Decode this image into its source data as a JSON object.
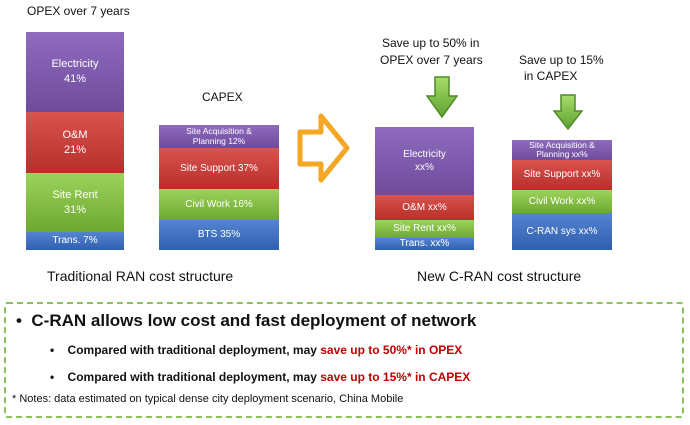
{
  "opex_title": "OPEX over 7 years",
  "capex_title": "CAPEX",
  "traditional_caption": "Traditional RAN cost structure",
  "new_caption": "New C-RAN cost structure",
  "save_opex_line1": "Save up to 50% in",
  "save_opex_line2": "OPEX over 7 years",
  "save_capex_line1": "Save up to 15%",
  "save_capex_line2": "in CAPEX",
  "traditional_opex": [
    {
      "line1": "Electricity",
      "line2": "41%",
      "color": "#7b58a8"
    },
    {
      "line1": "O&M",
      "line2": "21%",
      "color": "#c9403c"
    },
    {
      "line1": "Site Rent",
      "line2": "31%",
      "color": "#86c04a"
    },
    {
      "line1": "Trans.  7%",
      "line2": "",
      "color": "#3f6fc0"
    }
  ],
  "traditional_capex": [
    {
      "line1": "Site Acquisition &",
      "line2": "Planning  12%",
      "color": "#7b58a8"
    },
    {
      "line1": "Site Support  37%",
      "line2": "",
      "color": "#c9403c"
    },
    {
      "line1": "Civil Work  16%",
      "line2": "",
      "color": "#86c04a"
    },
    {
      "line1": "BTS  35%",
      "line2": "",
      "color": "#3f6fc0"
    }
  ],
  "new_opex": [
    {
      "line1": "Electricity",
      "line2": "xx%",
      "color": "#7b58a8"
    },
    {
      "line1": "O&M xx%",
      "line2": "",
      "color": "#c9403c"
    },
    {
      "line1": "Site Rent xx%",
      "line2": "",
      "color": "#86c04a"
    },
    {
      "line1": "Trans.  xx%",
      "line2": "",
      "color": "#3f6fc0"
    }
  ],
  "new_capex": [
    {
      "line1": "Site Acquisition &",
      "line2": "Planning  xx%",
      "color": "#7b58a8"
    },
    {
      "line1": "Site Support  xx%",
      "line2": "",
      "color": "#c9403c"
    },
    {
      "line1": "Civil Work  xx%",
      "line2": "",
      "color": "#86c04a"
    },
    {
      "line1": "C-RAN sys xx%",
      "line2": "",
      "color": "#3f6fc0"
    }
  ],
  "notes": {
    "main": "C-RAN allows low cost and fast deployment of network",
    "sub1_prefix": "Compared with traditional deployment, may ",
    "sub1_highlight": "save up to 50%* in OPEX",
    "sub2_prefix": "Compared with traditional deployment, may ",
    "sub2_highlight": "save up to 15%* in CAPEX",
    "footnote": "* Notes: data estimated on typical dense city deployment scenario, China Mobile"
  },
  "colors": {
    "highlight": "#c00000",
    "arrow_orange": "#f5a623",
    "arrow_green": "#6db33f",
    "dash_border": "#8dc05a"
  }
}
